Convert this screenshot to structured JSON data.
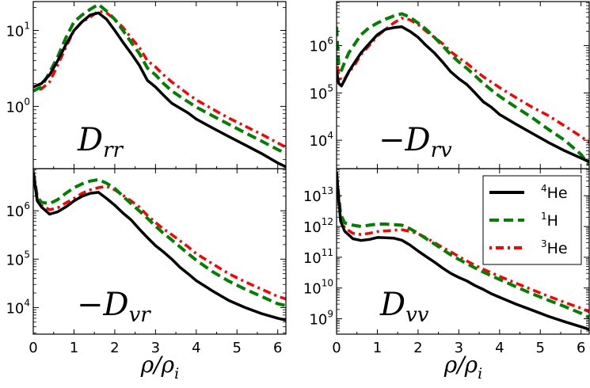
{
  "xlabel": {
    "main": "ρ/ρ",
    "sub": "i"
  },
  "legend": [
    {
      "label": "He",
      "sup": "4",
      "color": "#000000",
      "dash": "none"
    },
    {
      "label": "H",
      "sup": "1",
      "color": "#008000",
      "dash": "12 6"
    },
    {
      "label": "He",
      "sup": "3",
      "color": "#ff0000",
      "dash": "dashdot"
    }
  ],
  "chart_data": [
    {
      "type": "line",
      "panel": "top-left",
      "yscale": "log",
      "label": {
        "prefix": "",
        "main": "D",
        "sub": "rr"
      },
      "xlim": [
        0,
        6.2
      ],
      "ylim_log10": [
        -0.82,
        1.38
      ],
      "xticks": [
        "0",
        "1",
        "2",
        "3",
        "4",
        "5",
        "6"
      ],
      "yticks": [
        {
          "base": "10",
          "exp": "1",
          "log10": 1
        },
        {
          "base": "10",
          "exp": "0",
          "log10": 0
        }
      ],
      "series": [
        {
          "name": "4He",
          "x": [
            0,
            0.2,
            0.4,
            0.6,
            0.8,
            1.0,
            1.2,
            1.4,
            1.6,
            1.8,
            2.0,
            2.2,
            2.4,
            2.6,
            2.8,
            3.0,
            3.2,
            3.4,
            3.6,
            3.8,
            4.0,
            4.4,
            4.8,
            5.2,
            5.6,
            6.0,
            6.2
          ],
          "y": [
            1.8,
            2.0,
            2.6,
            4.0,
            6.5,
            10,
            13,
            16,
            17,
            14,
            10,
            7,
            5,
            3.5,
            2.2,
            1.8,
            1.4,
            1.1,
            0.95,
            0.82,
            0.68,
            0.52,
            0.4,
            0.31,
            0.24,
            0.18,
            0.16
          ]
        },
        {
          "name": "1H",
          "x": [
            0,
            0.2,
            0.4,
            0.6,
            0.8,
            1.0,
            1.2,
            1.4,
            1.6,
            1.8,
            2.0,
            2.2,
            2.4,
            2.6,
            2.8,
            3.0,
            3.2,
            3.4,
            3.6,
            3.8,
            4.0,
            4.4,
            4.8,
            5.2,
            5.6,
            6.0,
            6.2
          ],
          "y": [
            1.6,
            1.8,
            2.8,
            4.5,
            8,
            13,
            16,
            19,
            22,
            18,
            14,
            10,
            7,
            5,
            3.2,
            2.6,
            2.0,
            1.6,
            1.35,
            1.15,
            0.98,
            0.75,
            0.58,
            0.45,
            0.35,
            0.27,
            0.24
          ]
        },
        {
          "name": "3He",
          "x": [
            0,
            0.2,
            0.4,
            0.6,
            0.8,
            1.0,
            1.2,
            1.4,
            1.6,
            1.8,
            2.0,
            2.2,
            2.4,
            2.6,
            2.8,
            3.0,
            3.2,
            3.4,
            3.6,
            3.8,
            4.0,
            4.4,
            4.8,
            5.2,
            5.6,
            6.0,
            6.2
          ],
          "y": [
            1.6,
            1.7,
            2.1,
            3.5,
            6,
            10,
            13,
            15,
            18,
            17,
            14,
            11,
            8,
            6,
            4,
            3.3,
            2.6,
            2.1,
            1.75,
            1.45,
            1.22,
            0.92,
            0.7,
            0.55,
            0.43,
            0.33,
            0.29
          ]
        }
      ]
    },
    {
      "type": "line",
      "panel": "top-right",
      "yscale": "log",
      "label": {
        "prefix": "−",
        "main": "D",
        "sub": "rv"
      },
      "xlim": [
        0,
        6.2
      ],
      "ylim_log10": [
        3.4,
        6.93
      ],
      "xticks": [
        "0",
        "1",
        "2",
        "3",
        "4",
        "5",
        "6"
      ],
      "yticks": [
        {
          "base": "10",
          "exp": "6",
          "log10": 6
        },
        {
          "base": "10",
          "exp": "5",
          "log10": 5
        },
        {
          "base": "10",
          "exp": "4",
          "log10": 4
        }
      ],
      "series": [
        {
          "name": "4He",
          "x": [
            0,
            0.05,
            0.12,
            0.2,
            0.3,
            0.45,
            0.6,
            0.8,
            1.0,
            1.2,
            1.4,
            1.6,
            1.8,
            2.0,
            2.2,
            2.4,
            2.6,
            2.8,
            3.0,
            3.2,
            3.4,
            3.6,
            3.8,
            4.0,
            4.4,
            4.8,
            5.2,
            5.6,
            6.0,
            6.2
          ],
          "y": [
            300000,
            160000,
            140000,
            190000,
            280000,
            450000,
            700000,
            1100000,
            1700000,
            2200000,
            2400000,
            2500000,
            2000000,
            1500000,
            1000000,
            700000,
            450000,
            280000,
            200000,
            150000,
            100000,
            65000,
            50000,
            35000,
            22000,
            14000,
            9000,
            6000,
            4200,
            3500
          ]
        },
        {
          "name": "1H",
          "x": [
            0,
            0.05,
            0.12,
            0.2,
            0.3,
            0.45,
            0.6,
            0.8,
            1.0,
            1.2,
            1.4,
            1.6,
            1.8,
            2.0,
            2.2,
            2.4,
            2.6,
            2.8,
            3.0,
            3.2,
            3.4,
            3.6,
            3.8,
            4.0,
            4.4,
            4.8,
            5.2,
            5.6,
            6.0,
            6.2
          ],
          "y": [
            2500000,
            400000,
            300000,
            450000,
            700000,
            1100000,
            1700000,
            2400000,
            3000000,
            3600000,
            4200000,
            4700000,
            4000000,
            3000000,
            2200000,
            1500000,
            1000000,
            650000,
            450000,
            330000,
            230000,
            160000,
            115000,
            85000,
            50000,
            30000,
            17000,
            10000,
            5000,
            3000
          ]
        },
        {
          "name": "3He",
          "x": [
            0,
            0.05,
            0.12,
            0.2,
            0.3,
            0.45,
            0.6,
            0.8,
            1.0,
            1.2,
            1.4,
            1.6,
            1.8,
            2.0,
            2.2,
            2.4,
            2.6,
            2.8,
            3.0,
            3.2,
            3.4,
            3.6,
            3.8,
            4.0,
            4.4,
            4.8,
            5.2,
            5.6,
            6.0,
            6.2
          ],
          "y": [
            500000,
            250000,
            180000,
            200000,
            270000,
            400000,
            650000,
            1000000,
            1600000,
            2200000,
            3000000,
            3800000,
            3500000,
            2800000,
            2000000,
            1500000,
            1100000,
            750000,
            550000,
            420000,
            300000,
            220000,
            170000,
            130000,
            80000,
            50000,
            33000,
            20000,
            12000,
            9000
          ]
        }
      ]
    },
    {
      "type": "line",
      "panel": "bottom-left",
      "yscale": "log",
      "label": {
        "prefix": "−",
        "main": "D",
        "sub": "vr"
      },
      "xlim": [
        0,
        6.2
      ],
      "ylim_log10": [
        3.45,
        6.87
      ],
      "xticks": [
        "0",
        "1",
        "2",
        "3",
        "4",
        "5",
        "6"
      ],
      "yticks": [
        {
          "base": "10",
          "exp": "6",
          "log10": 6
        },
        {
          "base": "10",
          "exp": "5",
          "log10": 5
        },
        {
          "base": "10",
          "exp": "4",
          "log10": 4
        }
      ],
      "series": [
        {
          "name": "4He",
          "x": [
            0,
            0.1,
            0.2,
            0.4,
            0.6,
            0.8,
            1.0,
            1.2,
            1.4,
            1.6,
            1.8,
            2.0,
            2.2,
            2.4,
            2.6,
            2.8,
            3.0,
            3.2,
            3.4,
            3.6,
            3.8,
            4.0,
            4.4,
            4.8,
            5.2,
            5.6,
            6.0,
            6.2
          ],
          "y": [
            6000000,
            1600000,
            1200000,
            850000,
            950000,
            1200000,
            1600000,
            2000000,
            2300000,
            2400000,
            1800000,
            1300000,
            900000,
            650000,
            420000,
            280000,
            190000,
            140000,
            100000,
            68000,
            50000,
            36000,
            22000,
            14000,
            10000,
            7500,
            6000,
            5500
          ]
        },
        {
          "name": "1H",
          "x": [
            0,
            0.1,
            0.2,
            0.4,
            0.6,
            0.8,
            1.0,
            1.2,
            1.4,
            1.6,
            1.8,
            2.0,
            2.2,
            2.4,
            2.6,
            2.8,
            3.0,
            3.2,
            3.4,
            3.6,
            3.8,
            4.0,
            4.4,
            4.8,
            5.2,
            5.6,
            6.0,
            6.2
          ],
          "y": [
            6500000,
            1900000,
            1500000,
            1400000,
            1700000,
            2300000,
            3000000,
            3600000,
            4100000,
            4400000,
            3700000,
            2900000,
            2000000,
            1400000,
            1000000,
            700000,
            480000,
            340000,
            250000,
            180000,
            130000,
            95000,
            55000,
            35000,
            24000,
            17000,
            12000,
            11000
          ]
        },
        {
          "name": "3He",
          "x": [
            0,
            0.1,
            0.2,
            0.4,
            0.6,
            0.8,
            1.0,
            1.2,
            1.4,
            1.6,
            1.8,
            2.0,
            2.2,
            2.4,
            2.6,
            2.8,
            3.0,
            3.2,
            3.4,
            3.6,
            3.8,
            4.0,
            4.4,
            4.8,
            5.2,
            5.6,
            6.0,
            6.2
          ],
          "y": [
            7000000,
            1700000,
            1300000,
            1050000,
            1150000,
            1450000,
            1800000,
            2300000,
            2700000,
            3000000,
            3200000,
            2700000,
            2100000,
            1600000,
            1200000,
            800000,
            570000,
            420000,
            320000,
            240000,
            180000,
            130000,
            80000,
            50000,
            34000,
            24000,
            17000,
            15000
          ]
        }
      ]
    },
    {
      "type": "line",
      "panel": "bottom-right",
      "yscale": "log",
      "label": {
        "prefix": "",
        "main": "D",
        "sub": "vv"
      },
      "xlim": [
        0,
        6.2
      ],
      "ylim_log10": [
        8.5,
        13.88
      ],
      "xticks": [
        "0",
        "1",
        "2",
        "3",
        "4",
        "5",
        "6"
      ],
      "yticks": [
        {
          "base": "10",
          "exp": "13",
          "log10": 13
        },
        {
          "base": "10",
          "exp": "12",
          "log10": 12
        },
        {
          "base": "10",
          "exp": "11",
          "log10": 11
        },
        {
          "base": "10",
          "exp": "10",
          "log10": 10
        },
        {
          "base": "10",
          "exp": "9",
          "log10": 9
        }
      ],
      "series": [
        {
          "name": "4He",
          "x": [
            0,
            0.05,
            0.1,
            0.2,
            0.4,
            0.6,
            0.8,
            1.0,
            1.2,
            1.4,
            1.6,
            1.8,
            2.0,
            2.2,
            2.4,
            2.6,
            2.8,
            3.0,
            3.2,
            3.4,
            3.6,
            3.8,
            4.0,
            4.4,
            4.8,
            5.2,
            5.6,
            6.0,
            6.2
          ],
          "y": [
            60000000000000.0,
            8000000000000.0,
            1500000000000.0,
            700000000000.0,
            400000000000.0,
            350000000000.0,
            380000000000.0,
            440000000000.0,
            430000000000.0,
            420000000000.0,
            360000000000.0,
            250000000000.0,
            160000000000.0,
            105000000000.0,
            70000000000.0,
            45000000000.0,
            30000000000.0,
            22000000000.0,
            17000000000.0,
            12000000000.0,
            9000000000.0,
            6500000000.0,
            5000000000.0,
            3000000000.0,
            1900000000.0,
            1200000000.0,
            800000000.0,
            550000000.0,
            450000000.0
          ]
        },
        {
          "name": "1H",
          "x": [
            0,
            0.05,
            0.1,
            0.2,
            0.4,
            0.6,
            0.8,
            1.0,
            1.2,
            1.4,
            1.6,
            1.8,
            2.0,
            2.2,
            2.4,
            2.6,
            2.8,
            3.0,
            3.2,
            3.4,
            3.6,
            3.8,
            4.0,
            4.4,
            4.8,
            5.2,
            5.6,
            6.0,
            6.2
          ],
          "y": [
            50000000000000.0,
            10000000000000.0,
            2500000000000.0,
            1300000000000.0,
            1100000000000.0,
            1000000000000.0,
            1100000000000.0,
            1200000000000.0,
            1200000000000.0,
            1150000000000.0,
            1100000000000.0,
            850000000000.0,
            600000000000.0,
            400000000000.0,
            270000000000.0,
            180000000000.0,
            120000000000.0,
            85000000000.0,
            62000000000.0,
            45000000000.0,
            33000000000.0,
            25000000000.0,
            19000000000.0,
            11000000000.0,
            6500000000.0,
            4000000000.0,
            2500000000.0,
            1500000000.0,
            1100000000.0
          ]
        },
        {
          "name": "3He",
          "x": [
            0,
            0.05,
            0.1,
            0.2,
            0.4,
            0.6,
            0.8,
            1.0,
            1.2,
            1.4,
            1.6,
            1.8,
            2.0,
            2.2,
            2.4,
            2.6,
            2.8,
            3.0,
            3.2,
            3.4,
            3.6,
            3.8,
            4.0,
            4.4,
            4.8,
            5.2,
            5.6,
            6.0,
            6.2
          ],
          "y": [
            60000000000000.0,
            7000000000000.0,
            1800000000000.0,
            900000000000.0,
            600000000000.0,
            550000000000.0,
            600000000000.0,
            680000000000.0,
            720000000000.0,
            750000000000.0,
            780000000000.0,
            700000000000.0,
            580000000000.0,
            430000000000.0,
            300000000000.0,
            210000000000.0,
            150000000000.0,
            105000000000.0,
            75000000000.0,
            55000000000.0,
            41000000000.0,
            31000000000.0,
            24000000000.0,
            14500000000.0,
            8800000000.0,
            5400000000.0,
            3400000000.0,
            2200000000.0,
            1700000000.0
          ]
        }
      ]
    }
  ]
}
